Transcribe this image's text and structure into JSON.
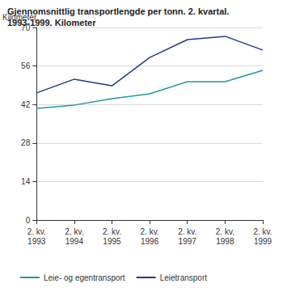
{
  "chart_data": {
    "type": "line",
    "title": "Gjennomsnittlig transportlengde per tonn. 2. kvartal.\n1993-1999. Kilometer",
    "y_label": "Kilometer",
    "categories": [
      "2. kv.\n1993",
      "2. kv.\n1994",
      "2. kv.\n1995",
      "2. kv.\n1996",
      "2. kv.\n1997",
      "2. kv.\n1998",
      "2. kv.\n1999"
    ],
    "series": [
      {
        "name": "Leie- og egentransport",
        "color": "#1f9a9c",
        "values": [
          40.6,
          41.8,
          44.1,
          45.9,
          50.3,
          50.3,
          54.4
        ]
      },
      {
        "name": "Leietransport",
        "color": "#1f3a8a",
        "values": [
          46.2,
          51.2,
          48.8,
          59.1,
          65.6,
          66.8,
          61.8
        ]
      }
    ],
    "ylim": [
      0,
      70
    ],
    "yticks": [
      0,
      14,
      28,
      42,
      56,
      70
    ],
    "grid": true,
    "legend": "bottom-left"
  }
}
